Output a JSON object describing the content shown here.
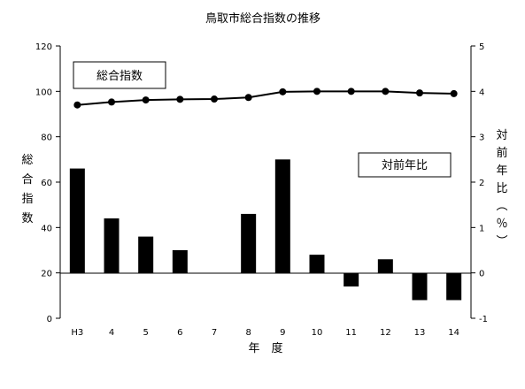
{
  "chart_data": {
    "type": "bar+line",
    "title": "鳥取市総合指数の推移",
    "xlabel": "年　度",
    "ylabel_left": "総合指数",
    "ylabel_right": "対前年比（％）",
    "categories": [
      "H3",
      "4",
      "5",
      "6",
      "7",
      "8",
      "9",
      "10",
      "11",
      "12",
      "13",
      "14"
    ],
    "left_axis": {
      "min": 0,
      "max": 120,
      "ticks": [
        "0",
        "20",
        "40",
        "60",
        "80",
        "100",
        "120"
      ]
    },
    "right_axis": {
      "min": -1,
      "max": 5,
      "ticks": [
        "-1",
        "0",
        "1",
        "2",
        "3",
        "4",
        "5"
      ]
    },
    "series": [
      {
        "name": "総合指数",
        "kind": "line",
        "axis": "left",
        "color": "#000000",
        "values": [
          94.0,
          95.3,
          96.2,
          96.5,
          96.6,
          97.3,
          99.8,
          100.0,
          100.0,
          100.0,
          99.3,
          99.0
        ]
      },
      {
        "name": "対前年比",
        "kind": "bar",
        "axis": "right",
        "color": "#000000",
        "values": [
          2.3,
          1.2,
          0.8,
          0.5,
          0.0,
          1.3,
          2.5,
          0.4,
          -0.3,
          0.3,
          -0.6,
          -0.6
        ]
      }
    ],
    "legend": [
      {
        "label": "総合指数",
        "placement": "top-left"
      },
      {
        "label": "対前年比",
        "placement": "middle-right"
      }
    ],
    "grid": false
  }
}
